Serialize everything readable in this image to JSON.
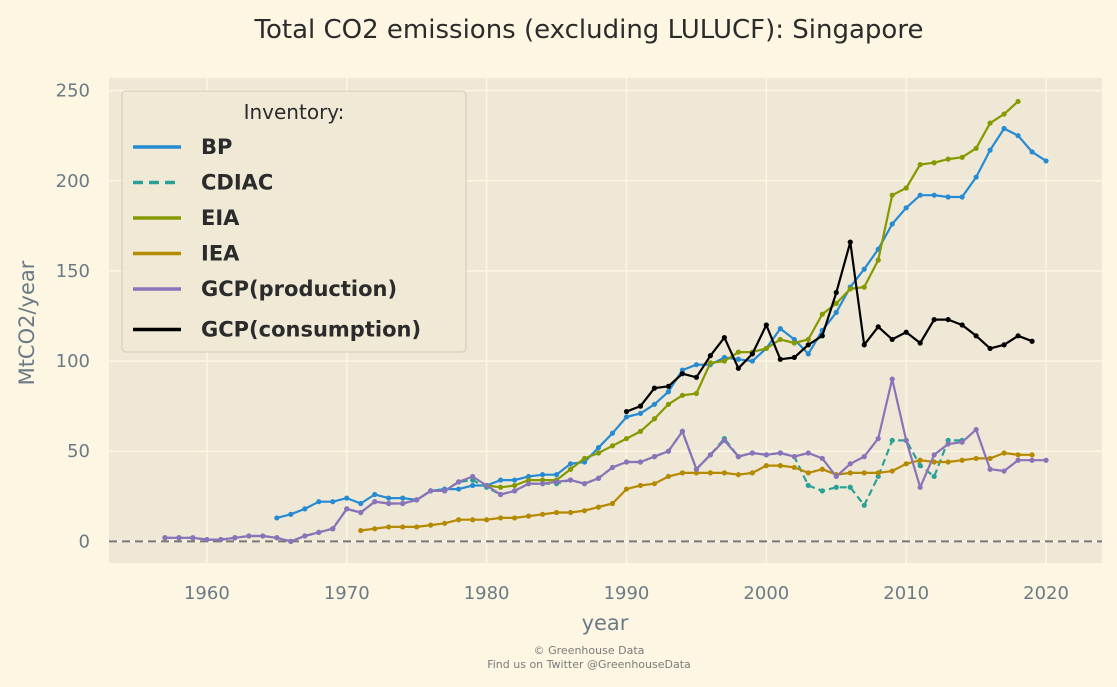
{
  "chart_data": {
    "type": "line",
    "title": "Total CO2 emissions (excluding LULUCF): Singapore",
    "xlabel": "year",
    "ylabel": "MtCO2/year",
    "xlim": [
      1953,
      2024
    ],
    "ylim": [
      -12,
      257
    ],
    "xticks": [
      1960,
      1970,
      1980,
      1990,
      2000,
      2010,
      2020
    ],
    "yticks": [
      0,
      50,
      100,
      150,
      200,
      250
    ],
    "grid": true,
    "legend": {
      "title": "Inventory:",
      "placement": "top-left"
    },
    "baseline": 0,
    "series": [
      {
        "name": "BP",
        "color": "#268bd2",
        "dash": "solid",
        "x": [
          1965,
          1966,
          1967,
          1968,
          1969,
          1970,
          1971,
          1972,
          1973,
          1974,
          1975,
          1976,
          1977,
          1978,
          1979,
          1980,
          1981,
          1982,
          1983,
          1984,
          1985,
          1986,
          1987,
          1988,
          1989,
          1990,
          1991,
          1992,
          1993,
          1994,
          1995,
          1996,
          1997,
          1998,
          1999,
          2000,
          2001,
          2002,
          2003,
          2004,
          2005,
          2006,
          2007,
          2008,
          2009,
          2010,
          2011,
          2012,
          2013,
          2014,
          2015,
          2016,
          2017,
          2018,
          2019,
          2020
        ],
        "y": [
          13,
          15,
          18,
          22,
          22,
          24,
          21,
          26,
          24,
          24,
          23,
          28,
          29,
          29,
          31,
          31,
          34,
          34,
          36,
          37,
          37,
          43,
          44,
          52,
          60,
          69,
          71,
          76,
          83,
          95,
          98,
          98,
          102,
          101,
          100,
          107,
          118,
          112,
          104,
          117,
          127,
          141,
          151,
          162,
          176,
          185,
          192,
          192,
          191,
          191,
          202,
          217,
          229,
          225,
          216,
          211
        ]
      },
      {
        "name": "CDIAC",
        "color": "#2aa198",
        "dash": "dashed",
        "x": [
          1957,
          1958,
          1959,
          1960,
          1961,
          1962,
          1963,
          1964,
          1965,
          1966,
          1967,
          1968,
          1969,
          1970,
          1971,
          1972,
          1973,
          1974,
          1975,
          1976,
          1977,
          1978,
          1979,
          1980,
          1981,
          1982,
          1983,
          1984,
          1985,
          1986,
          1987,
          1988,
          1989,
          1990,
          1991,
          1992,
          1993,
          1994,
          1995,
          1996,
          1997,
          1998,
          1999,
          2000,
          2001,
          2002,
          2003,
          2004,
          2005,
          2006,
          2007,
          2008,
          2009,
          2010,
          2011,
          2012,
          2013,
          2014
        ],
        "y": [
          2,
          2,
          2,
          1,
          1,
          2,
          3,
          3,
          2,
          0,
          3,
          5,
          7,
          18,
          16,
          22,
          21,
          21,
          23,
          28,
          28,
          33,
          34,
          30,
          26,
          28,
          32,
          32,
          32,
          34,
          32,
          35,
          41,
          44,
          44,
          47,
          50,
          61,
          40,
          48,
          57,
          47,
          49,
          48,
          49,
          47,
          31,
          28,
          30,
          30,
          20,
          36,
          56,
          56,
          42,
          36,
          56,
          56
        ]
      },
      {
        "name": "EIA",
        "color": "#859900",
        "dash": "solid",
        "x": [
          1980,
          1981,
          1982,
          1983,
          1984,
          1985,
          1986,
          1987,
          1988,
          1989,
          1990,
          1991,
          1992,
          1993,
          1994,
          1995,
          1996,
          1997,
          1998,
          1999,
          2000,
          2001,
          2002,
          2003,
          2004,
          2005,
          2006,
          2007,
          2008,
          2009,
          2010,
          2011,
          2012,
          2013,
          2014,
          2015,
          2016,
          2017,
          2018
        ],
        "y": [
          31,
          30,
          31,
          34,
          34,
          34,
          40,
          46,
          49,
          53,
          57,
          61,
          68,
          76,
          81,
          82,
          99,
          100,
          105,
          105,
          107,
          112,
          110,
          112,
          126,
          132,
          140,
          141,
          156,
          192,
          196,
          209,
          210,
          212,
          213,
          218,
          232,
          237,
          244
        ]
      },
      {
        "name": "IEA",
        "color": "#b58900",
        "dash": "solid",
        "x": [
          1971,
          1972,
          1973,
          1974,
          1975,
          1976,
          1977,
          1978,
          1979,
          1980,
          1981,
          1982,
          1983,
          1984,
          1985,
          1986,
          1987,
          1988,
          1989,
          1990,
          1991,
          1992,
          1993,
          1994,
          1995,
          1996,
          1997,
          1998,
          1999,
          2000,
          2001,
          2002,
          2003,
          2004,
          2005,
          2006,
          2007,
          2008,
          2009,
          2010,
          2011,
          2012,
          2013,
          2014,
          2015,
          2016,
          2017,
          2018,
          2019
        ],
        "y": [
          6,
          7,
          8,
          8,
          8,
          9,
          10,
          12,
          12,
          12,
          13,
          13,
          14,
          15,
          16,
          16,
          17,
          19,
          21,
          29,
          31,
          32,
          36,
          38,
          38,
          38,
          38,
          37,
          38,
          42,
          42,
          41,
          38,
          40,
          37,
          38,
          38,
          38,
          39,
          43,
          45,
          44,
          44,
          45,
          46,
          46,
          49,
          48,
          48
        ]
      },
      {
        "name": "GCP(production)",
        "color": "#8a73b8",
        "dash": "solid",
        "x": [
          1957,
          1958,
          1959,
          1960,
          1961,
          1962,
          1963,
          1964,
          1965,
          1966,
          1967,
          1968,
          1969,
          1970,
          1971,
          1972,
          1973,
          1974,
          1975,
          1976,
          1977,
          1978,
          1979,
          1980,
          1981,
          1982,
          1983,
          1984,
          1985,
          1986,
          1987,
          1988,
          1989,
          1990,
          1991,
          1992,
          1993,
          1994,
          1995,
          1996,
          1997,
          1998,
          1999,
          2000,
          2001,
          2002,
          2003,
          2004,
          2005,
          2006,
          2007,
          2008,
          2009,
          2010,
          2011,
          2012,
          2013,
          2014,
          2015,
          2016,
          2017,
          2018,
          2019,
          2020
        ],
        "y": [
          2,
          2,
          2,
          1,
          1,
          2,
          3,
          3,
          2,
          0,
          3,
          5,
          7,
          18,
          16,
          22,
          21,
          21,
          23,
          28,
          28,
          33,
          36,
          31,
          26,
          28,
          32,
          32,
          33,
          34,
          32,
          35,
          41,
          44,
          44,
          47,
          50,
          61,
          40,
          48,
          56,
          47,
          49,
          48,
          49,
          47,
          49,
          46,
          36,
          43,
          47,
          57,
          90,
          56,
          30,
          48,
          54,
          55,
          62,
          40,
          39,
          45,
          45,
          45
        ]
      },
      {
        "name": "GCP(consumption)",
        "color": "#000000",
        "dash": "solid",
        "x": [
          1990,
          1991,
          1992,
          1993,
          1994,
          1995,
          1996,
          1997,
          1998,
          1999,
          2000,
          2001,
          2002,
          2003,
          2004,
          2005,
          2006,
          2007,
          2008,
          2009,
          2010,
          2011,
          2012,
          2013,
          2014,
          2015,
          2016,
          2017,
          2018,
          2019
        ],
        "y": [
          72,
          75,
          85,
          86,
          93,
          91,
          103,
          113,
          96,
          104,
          120,
          101,
          102,
          109,
          114,
          138,
          166,
          109,
          119,
          112,
          116,
          110,
          123,
          123,
          120,
          114,
          107,
          109,
          114,
          111
        ]
      }
    ]
  },
  "footer": {
    "credit": "© Greenhouse Data",
    "twitter": "Find us on Twitter @GreenhouseData"
  },
  "colors": {
    "background": "#fdf6e3",
    "plot_area": "#efe8d6",
    "grid": "#fdf6e3",
    "baseline": "#777777"
  }
}
